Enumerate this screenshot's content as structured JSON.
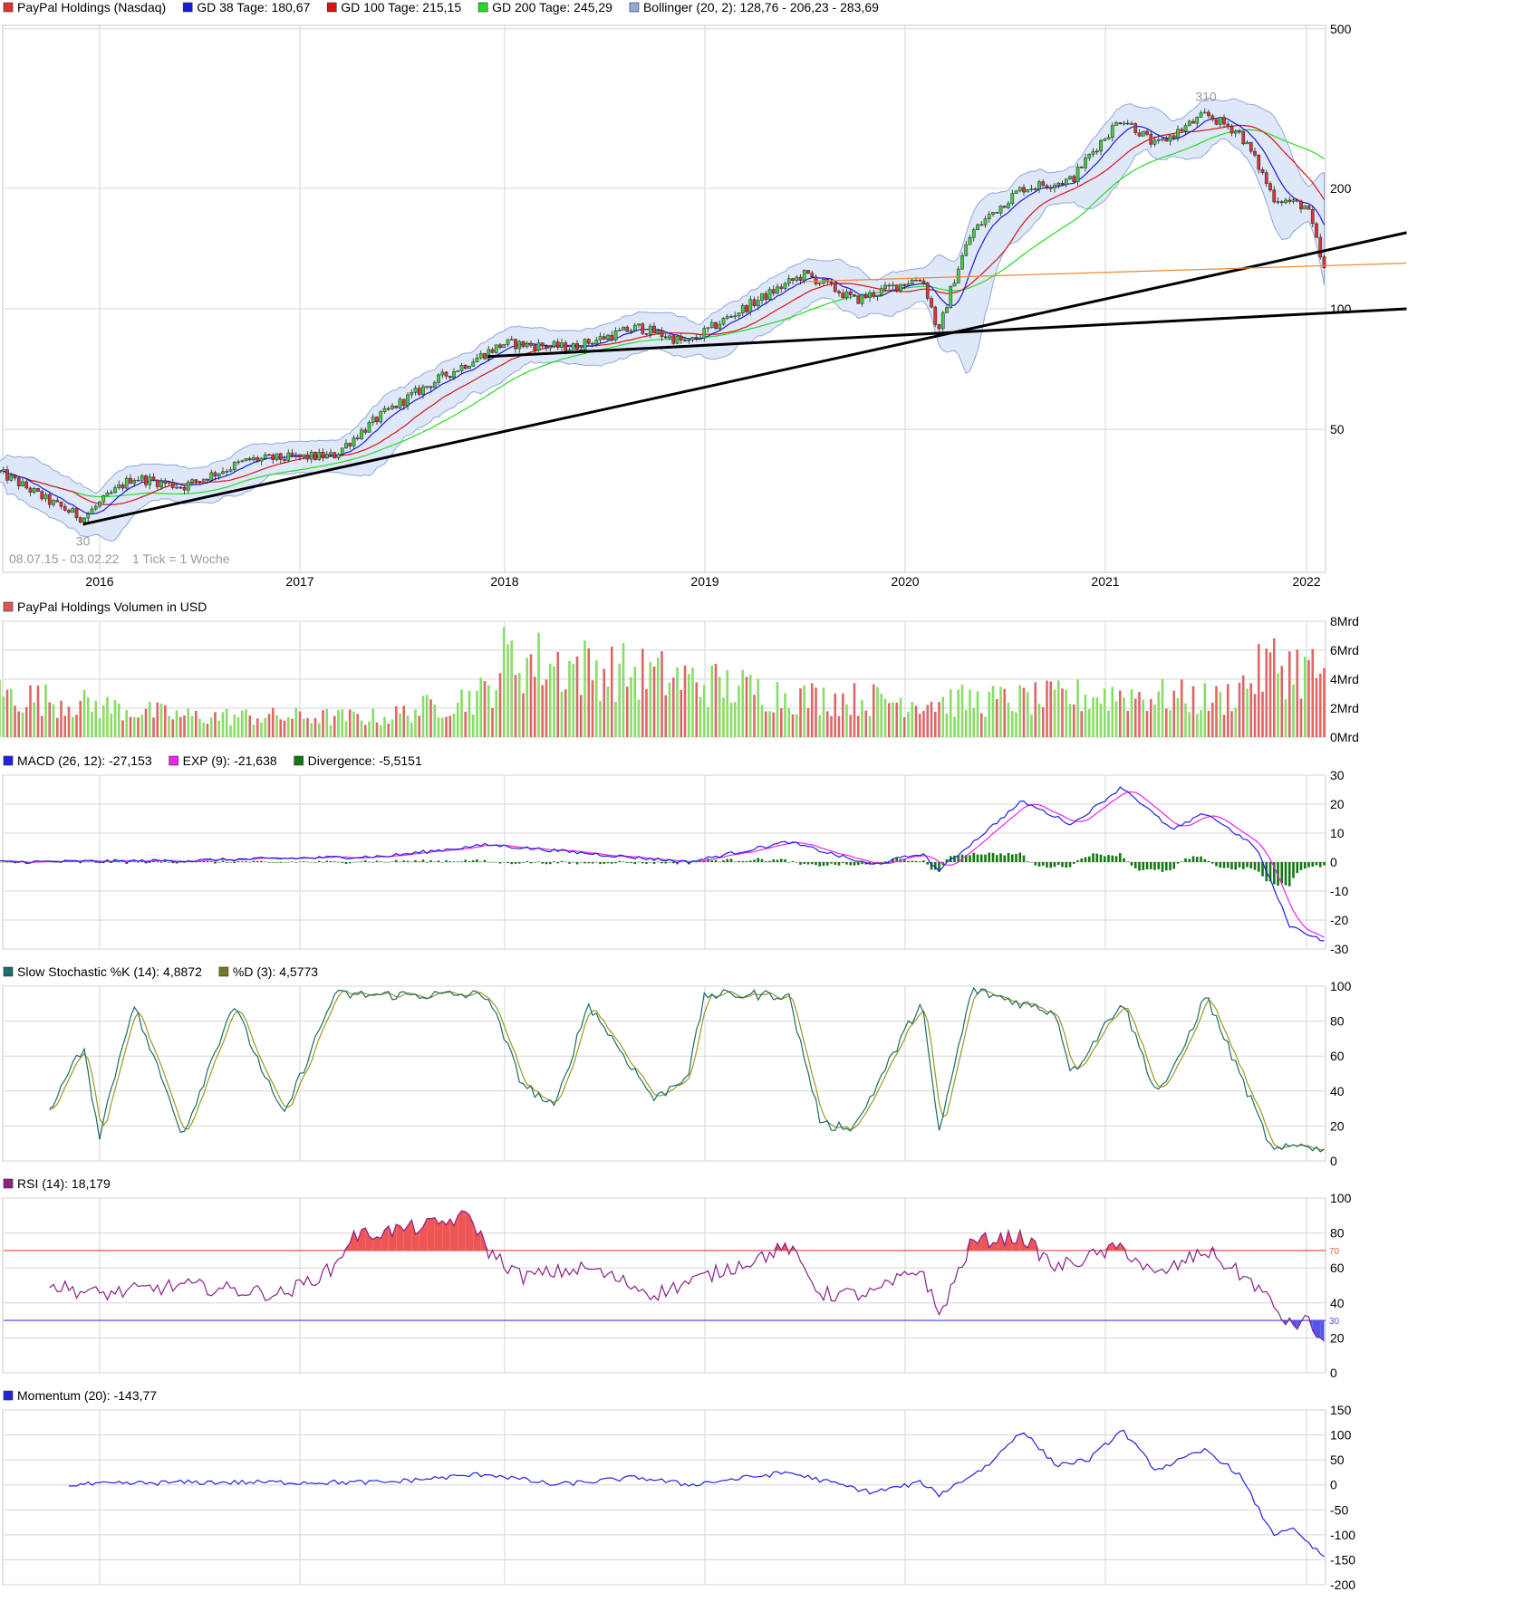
{
  "colors": {
    "grid": "#d6d6d6",
    "up": "#44cc44",
    "down": "#dd3333",
    "gd38": "#1a1add",
    "gd100": "#dd1111",
    "gd200": "#22dd22",
    "bollinger": "#8fa8dd",
    "bollinger_fill": "#dfe8f8",
    "macd": "#2222dd",
    "exp": "#ee22ee",
    "divergence": "#117711",
    "stoch_k": "#1d6b6b",
    "stoch_d": "#999922",
    "rsi": "#882288",
    "rsi_over": "#ee5555",
    "rsi_under": "#5555ee",
    "momentum": "#2222dd",
    "trend": "#000000",
    "orange_line": "#ee8833"
  },
  "chart_data": [
    {
      "type": "candlestick",
      "legend": [
        {
          "label": "PayPal Holdings (Nasdaq)",
          "color": "#dd3333"
        },
        {
          "label": "GD 38 Tage: 180,67",
          "color": "#1a1add"
        },
        {
          "label": "GD 100 Tage: 215,15",
          "color": "#dd1111"
        },
        {
          "label": "GD 200 Tage: 245,29",
          "color": "#22dd22"
        },
        {
          "label": "Bollinger (20, 2): 128,76 - 206,23 - 283,69",
          "color": "#8fa8dd"
        }
      ],
      "y_scale": "log",
      "y_ticks": [
        50,
        100,
        200,
        500
      ],
      "ylim": [
        22,
        510
      ],
      "x_ticks": [
        "2016",
        "2017",
        "2018",
        "2019",
        "2020",
        "2021",
        "2022"
      ],
      "date_range_label": "08.07.15 - 03.02.22",
      "tick_label": "1 Tick = 1 Woche",
      "annotations": [
        {
          "text": "310",
          "date": "2021-07",
          "value": 310
        },
        {
          "text": "30",
          "date": "2015-12",
          "value": 30
        }
      ],
      "grid": true,
      "anchor_values": [
        {
          "date": "2015-07",
          "value": 39
        },
        {
          "date": "2015-10",
          "value": 33
        },
        {
          "date": "2015-12",
          "value": 30
        },
        {
          "date": "2016-03",
          "value": 38
        },
        {
          "date": "2016-06",
          "value": 36
        },
        {
          "date": "2016-10",
          "value": 42
        },
        {
          "date": "2017-03",
          "value": 43
        },
        {
          "date": "2017-06",
          "value": 55
        },
        {
          "date": "2017-10",
          "value": 70
        },
        {
          "date": "2018-01",
          "value": 82
        },
        {
          "date": "2018-05",
          "value": 80
        },
        {
          "date": "2018-09",
          "value": 90
        },
        {
          "date": "2018-12",
          "value": 82
        },
        {
          "date": "2019-04",
          "value": 104
        },
        {
          "date": "2019-07",
          "value": 122
        },
        {
          "date": "2019-10",
          "value": 105
        },
        {
          "date": "2020-02",
          "value": 120
        },
        {
          "date": "2020-03",
          "value": 86
        },
        {
          "date": "2020-05",
          "value": 155
        },
        {
          "date": "2020-08",
          "value": 200
        },
        {
          "date": "2020-11",
          "value": 210
        },
        {
          "date": "2021-02",
          "value": 300
        },
        {
          "date": "2021-04",
          "value": 255
        },
        {
          "date": "2021-07",
          "value": 305
        },
        {
          "date": "2021-09",
          "value": 275
        },
        {
          "date": "2021-11",
          "value": 190
        },
        {
          "date": "2022-01",
          "value": 180
        },
        {
          "date": "2022-02",
          "value": 125
        }
      ],
      "trendlines": [
        {
          "from": {
            "date": "2015-12",
            "value": 29
          },
          "to": {
            "date": "2022-07",
            "value": 155
          }
        },
        {
          "from": {
            "date": "2017-12",
            "value": 76
          },
          "to": {
            "date": "2022-07",
            "value": 100
          }
        },
        {
          "from": {
            "date": "2019-07",
            "value": 117
          },
          "to": {
            "date": "2022-07",
            "value": 130
          }
        }
      ]
    },
    {
      "type": "bar",
      "legend": [
        {
          "label": "PayPal Holdings Volumen in USD",
          "color": "#dd5555"
        }
      ],
      "y_ticks": [
        "0Mrd",
        "2Mrd",
        "4Mrd",
        "6Mrd",
        "8Mrd"
      ],
      "ylim": [
        0,
        8
      ],
      "unit": "Mrd USD",
      "anchor_values": [
        {
          "date": "2015-07",
          "value": 3.5
        },
        {
          "date": "2016-06",
          "value": 1.7
        },
        {
          "date": "2017-06",
          "value": 1.6
        },
        {
          "date": "2017-12",
          "value": 3.6
        },
        {
          "date": "2018-01",
          "value": 6.4
        },
        {
          "date": "2018-10",
          "value": 5.0
        },
        {
          "date": "2019-07",
          "value": 3.2
        },
        {
          "date": "2020-03",
          "value": 2.9
        },
        {
          "date": "2020-08",
          "value": 3.0
        },
        {
          "date": "2021-02",
          "value": 3.5
        },
        {
          "date": "2021-08",
          "value": 3.0
        },
        {
          "date": "2021-11",
          "value": 6.0
        },
        {
          "date": "2022-02",
          "value": 5.2
        }
      ]
    },
    {
      "type": "line",
      "legend": [
        {
          "label": "MACD (26, 12): -27,153",
          "color": "#2222dd"
        },
        {
          "label": "EXP (9): -21,638",
          "color": "#ee22ee"
        },
        {
          "label": "Divergence: -5,5151",
          "color": "#117711"
        }
      ],
      "y_ticks": [
        -30,
        -20,
        -10,
        0,
        10,
        20,
        30
      ],
      "ylim": [
        -30,
        30
      ],
      "anchor_values": [
        {
          "date": "2015-07",
          "value": 0
        },
        {
          "date": "2016-06",
          "value": 0.5
        },
        {
          "date": "2017-06",
          "value": 2
        },
        {
          "date": "2017-12",
          "value": 6
        },
        {
          "date": "2018-06",
          "value": 3
        },
        {
          "date": "2018-12",
          "value": 0
        },
        {
          "date": "2019-06",
          "value": 7
        },
        {
          "date": "2019-11",
          "value": -1
        },
        {
          "date": "2020-02",
          "value": 3
        },
        {
          "date": "2020-03",
          "value": -3
        },
        {
          "date": "2020-08",
          "value": 21
        },
        {
          "date": "2020-11",
          "value": 13
        },
        {
          "date": "2021-02",
          "value": 26
        },
        {
          "date": "2021-05",
          "value": 11
        },
        {
          "date": "2021-07",
          "value": 17
        },
        {
          "date": "2021-10",
          "value": 5
        },
        {
          "date": "2021-12",
          "value": -22
        },
        {
          "date": "2022-02",
          "value": -27
        }
      ]
    },
    {
      "type": "line",
      "legend": [
        {
          "label": "Slow Stochastic %K (14): 4,8872",
          "color": "#1d6b6b"
        },
        {
          "label": "%D (3): 4,5773",
          "color": "#777722"
        }
      ],
      "y_ticks": [
        0,
        20,
        40,
        60,
        80,
        100
      ],
      "ylim": [
        0,
        100
      ],
      "anchor_values": [
        {
          "date": "2015-10",
          "value": 30
        },
        {
          "date": "2015-12",
          "value": 65
        },
        {
          "date": "2016-01",
          "value": 15
        },
        {
          "date": "2016-03",
          "value": 90
        },
        {
          "date": "2016-06",
          "value": 15
        },
        {
          "date": "2016-09",
          "value": 90
        },
        {
          "date": "2016-12",
          "value": 25
        },
        {
          "date": "2017-03",
          "value": 95
        },
        {
          "date": "2017-12",
          "value": 95
        },
        {
          "date": "2018-02",
          "value": 45
        },
        {
          "date": "2018-04",
          "value": 30
        },
        {
          "date": "2018-06",
          "value": 90
        },
        {
          "date": "2018-10",
          "value": 35
        },
        {
          "date": "2018-12",
          "value": 50
        },
        {
          "date": "2019-01",
          "value": 95
        },
        {
          "date": "2019-06",
          "value": 95
        },
        {
          "date": "2019-08",
          "value": 20
        },
        {
          "date": "2019-10",
          "value": 20
        },
        {
          "date": "2020-02",
          "value": 92
        },
        {
          "date": "2020-03",
          "value": 15
        },
        {
          "date": "2020-05",
          "value": 98
        },
        {
          "date": "2020-10",
          "value": 85
        },
        {
          "date": "2020-11",
          "value": 50
        },
        {
          "date": "2021-02",
          "value": 92
        },
        {
          "date": "2021-04",
          "value": 40
        },
        {
          "date": "2021-05",
          "value": 50
        },
        {
          "date": "2021-07",
          "value": 95
        },
        {
          "date": "2021-09",
          "value": 50
        },
        {
          "date": "2021-11",
          "value": 5
        },
        {
          "date": "2022-01",
          "value": 10
        },
        {
          "date": "2022-02",
          "value": 5
        }
      ]
    },
    {
      "type": "line",
      "legend": [
        {
          "label": "RSI (14): 18,179",
          "color": "#882288"
        }
      ],
      "y_ticks": [
        0,
        20,
        40,
        60,
        80,
        100
      ],
      "ylim": [
        0,
        100
      ],
      "reference_lines": [
        {
          "value": 70,
          "label": "70",
          "color": "#ee5555"
        },
        {
          "value": 30,
          "label": "30",
          "color": "#5555ee"
        }
      ],
      "anchor_values": [
        {
          "date": "2015-10",
          "value": 50
        },
        {
          "date": "2016-01",
          "value": 45
        },
        {
          "date": "2016-06",
          "value": 50
        },
        {
          "date": "2016-12",
          "value": 45
        },
        {
          "date": "2017-03",
          "value": 60
        },
        {
          "date": "2017-04",
          "value": 78
        },
        {
          "date": "2017-09",
          "value": 85
        },
        {
          "date": "2017-11",
          "value": 90
        },
        {
          "date": "2017-12",
          "value": 70
        },
        {
          "date": "2018-02",
          "value": 55
        },
        {
          "date": "2018-06",
          "value": 60
        },
        {
          "date": "2018-10",
          "value": 45
        },
        {
          "date": "2019-01",
          "value": 55
        },
        {
          "date": "2019-06",
          "value": 72
        },
        {
          "date": "2019-08",
          "value": 45
        },
        {
          "date": "2019-11",
          "value": 45
        },
        {
          "date": "2020-02",
          "value": 60
        },
        {
          "date": "2020-03",
          "value": 32
        },
        {
          "date": "2020-05",
          "value": 75
        },
        {
          "date": "2020-08",
          "value": 78
        },
        {
          "date": "2020-10",
          "value": 60
        },
        {
          "date": "2021-02",
          "value": 72
        },
        {
          "date": "2021-04",
          "value": 55
        },
        {
          "date": "2021-07",
          "value": 70
        },
        {
          "date": "2021-10",
          "value": 50
        },
        {
          "date": "2021-12",
          "value": 27
        },
        {
          "date": "2022-01",
          "value": 30
        },
        {
          "date": "2022-02",
          "value": 18
        }
      ]
    },
    {
      "type": "line",
      "legend": [
        {
          "label": "Momentum (20): -143,77",
          "color": "#2222dd"
        }
      ],
      "y_ticks": [
        -200,
        -150,
        -100,
        -50,
        0,
        50,
        100,
        150
      ],
      "ylim": [
        -200,
        150
      ],
      "anchor_values": [
        {
          "date": "2015-11",
          "value": 0
        },
        {
          "date": "2016-06",
          "value": 5
        },
        {
          "date": "2017-06",
          "value": 5
        },
        {
          "date": "2017-12",
          "value": 22
        },
        {
          "date": "2018-04",
          "value": 0
        },
        {
          "date": "2018-09",
          "value": 15
        },
        {
          "date": "2018-12",
          "value": 0
        },
        {
          "date": "2019-06",
          "value": 25
        },
        {
          "date": "2019-11",
          "value": -15
        },
        {
          "date": "2020-02",
          "value": 5
        },
        {
          "date": "2020-03",
          "value": -20
        },
        {
          "date": "2020-06",
          "value": 40
        },
        {
          "date": "2020-08",
          "value": 110
        },
        {
          "date": "2020-10",
          "value": 40
        },
        {
          "date": "2020-12",
          "value": 50
        },
        {
          "date": "2021-02",
          "value": 110
        },
        {
          "date": "2021-04",
          "value": 30
        },
        {
          "date": "2021-07",
          "value": 70
        },
        {
          "date": "2021-09",
          "value": 20
        },
        {
          "date": "2021-11",
          "value": -100
        },
        {
          "date": "2021-12",
          "value": -85
        },
        {
          "date": "2022-02",
          "value": -143.77
        }
      ]
    }
  ]
}
